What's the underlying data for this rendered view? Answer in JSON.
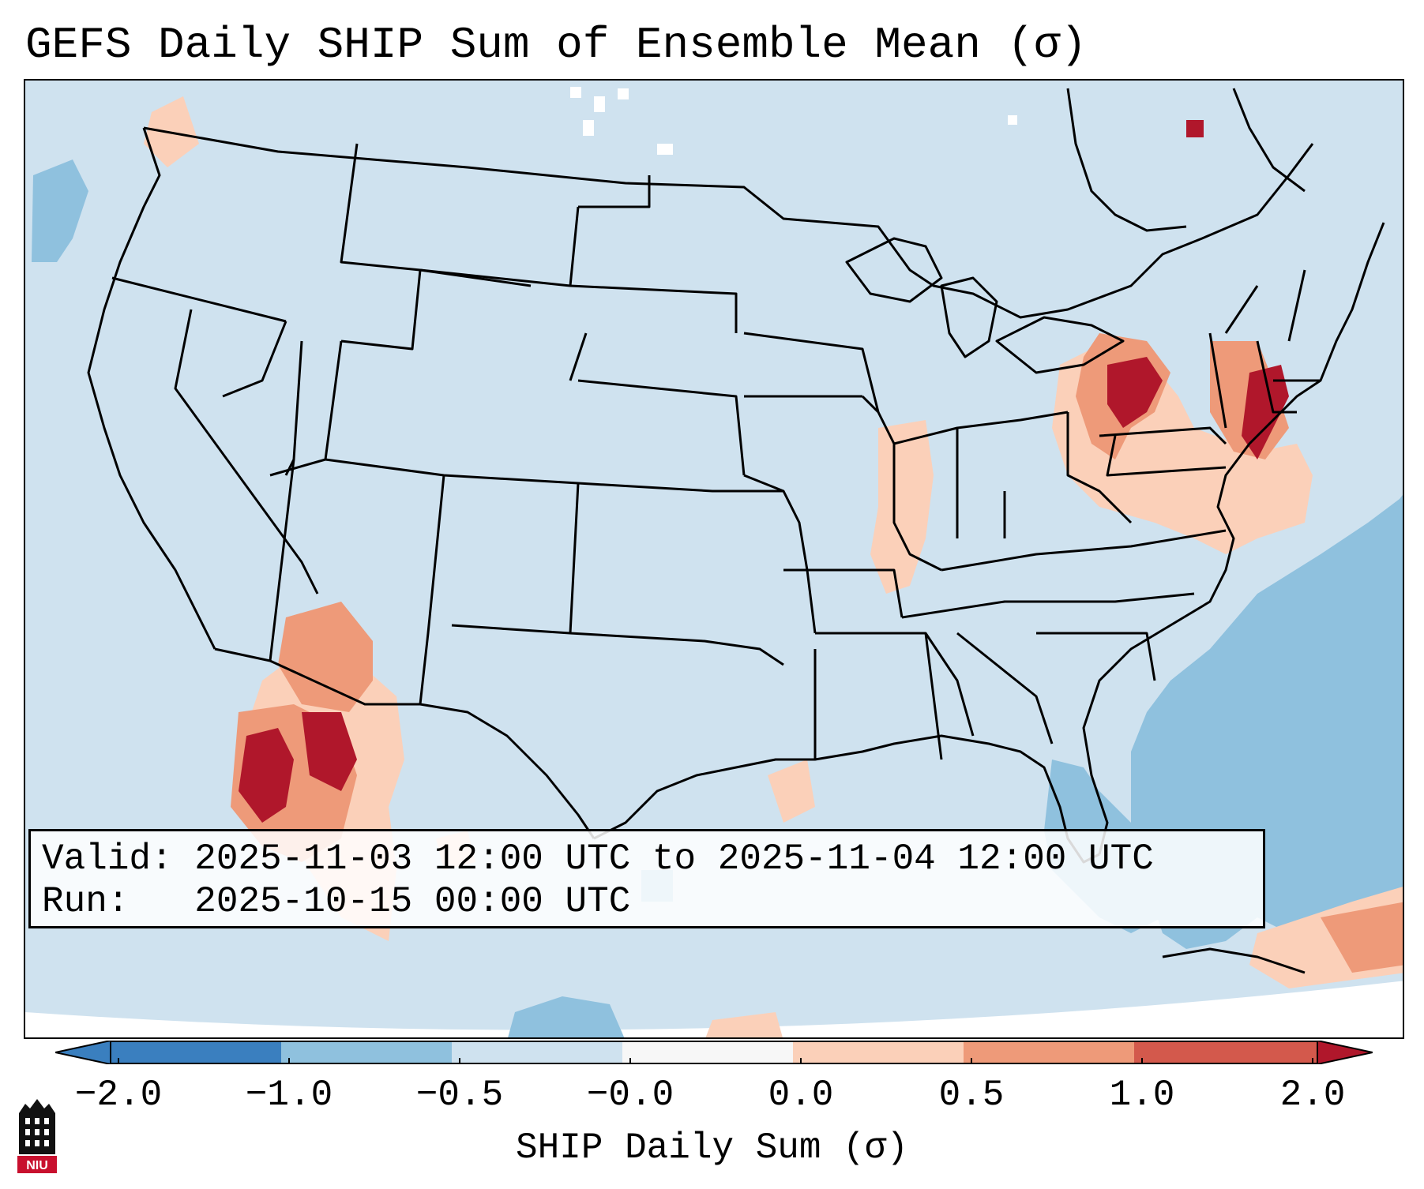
{
  "title": "GEFS Daily SHIP Sum of Ensemble Mean (σ)",
  "info": {
    "valid_line": "Valid: 2025-11-03 12:00 UTC to 2025-11-04 12:00 UTC",
    "run_line": "Run:   2025-10-15 00:00 UTC"
  },
  "colorbar": {
    "label": "SHIP Daily Sum (σ)",
    "ticks": [
      "−2.0",
      "−1.0",
      "−0.5",
      "−0.0",
      "0.0",
      "0.5",
      "1.0",
      "2.0"
    ],
    "colors": [
      "#3a7fbf",
      "#8fc1de",
      "#cfe2ef",
      "#f7f7f7",
      "#fbd0b9",
      "#ee9a79",
      "#d3594c",
      "#b0172b"
    ]
  },
  "logo": {
    "text": "NIU",
    "icon": "university-building-icon"
  },
  "map": {
    "icon": "conus-state-boundaries-map"
  }
}
